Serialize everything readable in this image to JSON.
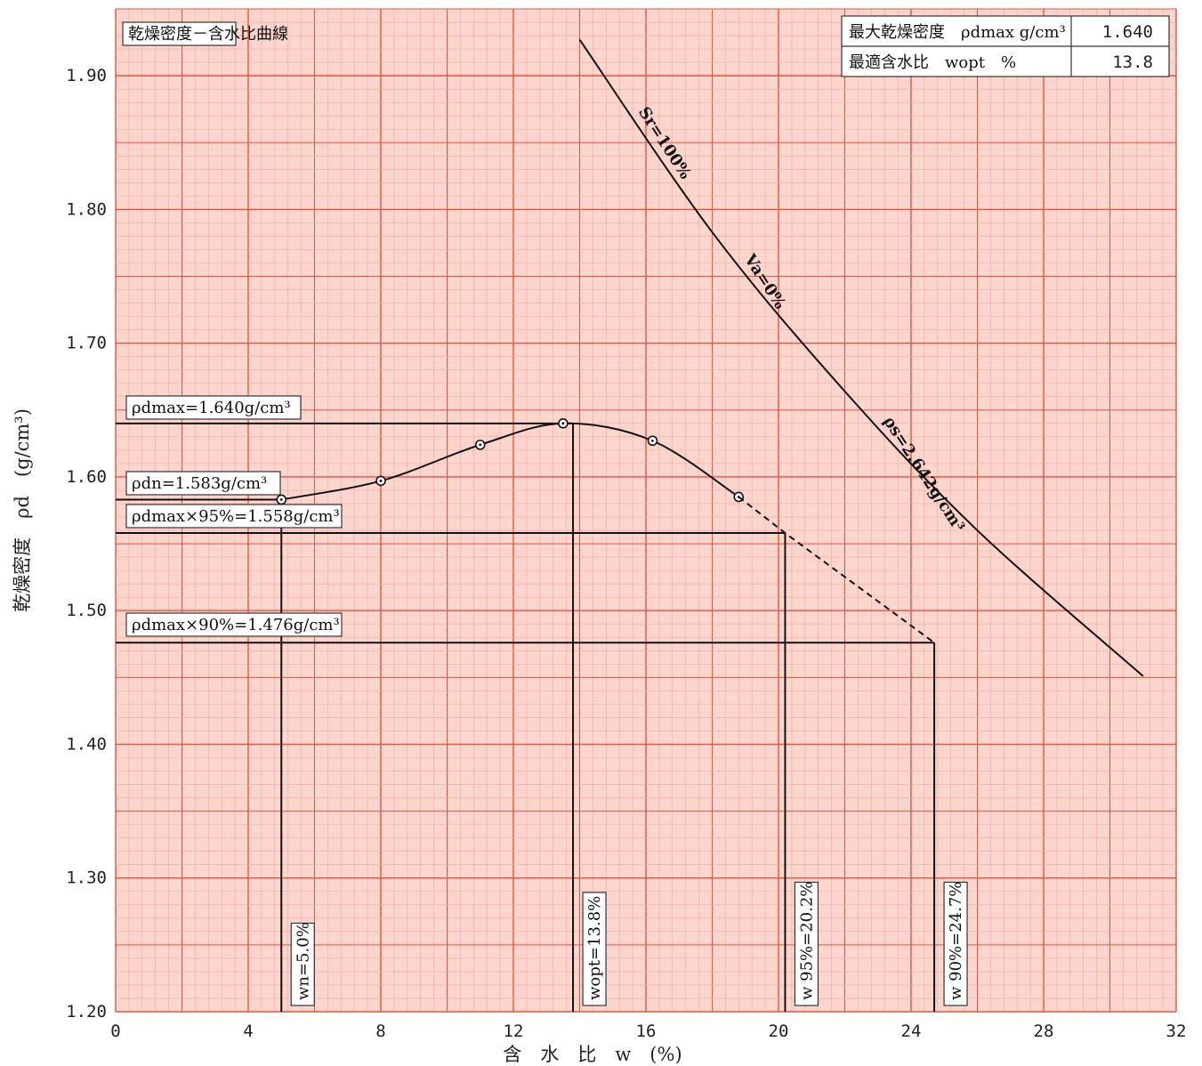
{
  "chart_data": {
    "type": "line",
    "title": "乾燥密度－含水比曲線",
    "xlabel": "含　水　比　w　(%)",
    "ylabel": "乾燥密度　ρd　(g/cm³)",
    "xlim": [
      0,
      32
    ],
    "ylim": [
      1.2,
      1.95
    ],
    "x_ticks": [
      "0",
      "4",
      "8",
      "12",
      "16",
      "20",
      "24",
      "28",
      "32"
    ],
    "y_ticks": [
      "1.20",
      "1.30",
      "1.40",
      "1.50",
      "1.60",
      "1.70",
      "1.80",
      "1.90"
    ],
    "grid": true,
    "series": [
      {
        "name": "",
        "style": "solid-curve-with-points",
        "points": [
          {
            "x": 5.0,
            "y": 1.583
          },
          {
            "x": 8.0,
            "y": 1.597
          },
          {
            "x": 11.0,
            "y": 1.624
          },
          {
            "x": 13.5,
            "y": 1.64
          },
          {
            "x": 16.2,
            "y": 1.627
          },
          {
            "x": 18.8,
            "y": 1.585
          }
        ]
      },
      {
        "name": "",
        "style": "dashed-extension",
        "points": [
          {
            "x": 18.8,
            "y": 1.585
          },
          {
            "x": 20.2,
            "y": 1.558
          },
          {
            "x": 24.7,
            "y": 1.476
          }
        ]
      },
      {
        "name": "Sr=100%　Va=0%　ρs=2.642g/cm³",
        "style": "saturation-line",
        "points": [
          {
            "x": 14.0,
            "y": 1.927
          },
          {
            "x": 18.0,
            "y": 1.783
          },
          {
            "x": 22.0,
            "y": 1.664
          },
          {
            "x": 26.0,
            "y": 1.56
          },
          {
            "x": 31.0,
            "y": 1.451
          }
        ]
      }
    ],
    "reference_lines": {
      "horizontal": [
        {
          "y": 1.64,
          "x_end": 13.8,
          "label": "ρdmax=1.640g/cm³"
        },
        {
          "y": 1.583,
          "x_end": 5.0,
          "label": "ρdn=1.583g/cm³"
        },
        {
          "y": 1.558,
          "x_end": 20.2,
          "label": "ρdmax×95%=1.558g/cm³"
        },
        {
          "y": 1.476,
          "x_end": 24.7,
          "label": "ρdmax×90%=1.476g/cm³"
        }
      ],
      "vertical": [
        {
          "x": 5.0,
          "y_top": 1.583,
          "label": "wn=5.0%"
        },
        {
          "x": 13.8,
          "y_top": 1.64,
          "label": "wopt=13.8%"
        },
        {
          "x": 20.2,
          "y_top": 1.558,
          "label": "w 95%=20.2%"
        },
        {
          "x": 24.7,
          "y_top": 1.476,
          "label": "w 90%=24.7%"
        }
      ]
    },
    "summary_table": [
      {
        "label": "最大乾燥密度　ρdmax g/cm³",
        "value": "1.640"
      },
      {
        "label": "最適含水比　wopt　%",
        "value": "13.8"
      }
    ],
    "colors": {
      "grid_minor": "#f0a8a0",
      "grid_major": "#e8523e",
      "background": "#fcd6cd",
      "line": "#111111"
    }
  }
}
